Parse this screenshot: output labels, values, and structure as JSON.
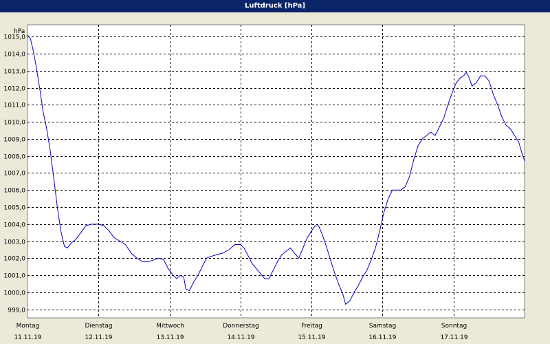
{
  "window": {
    "title": "Luftdruck [hPa]"
  },
  "chart_data": {
    "type": "line",
    "title": "Luftdruck [hPa]",
    "ylabel": "hPa",
    "xlabel": "",
    "ylim": [
      998.5,
      1015.7
    ],
    "xlim": [
      0,
      7
    ],
    "y_ticks": [
      999.0,
      1000.0,
      1001.0,
      1002.0,
      1003.0,
      1004.0,
      1005.0,
      1006.0,
      1007.0,
      1008.0,
      1009.0,
      1010.0,
      1011.0,
      1012.0,
      1013.0,
      1014.0,
      1015.0
    ],
    "y_tick_labels": [
      "999,0",
      "1000,0",
      "1001,0",
      "1002,0",
      "1003,0",
      "1004,0",
      "1005,0",
      "1006,0",
      "1007,0",
      "1008,0",
      "1009,0",
      "1010,0",
      "1011,0",
      "1012,0",
      "1013,0",
      "1014,0",
      "1015,0"
    ],
    "x_ticks": [
      {
        "day": "Montag",
        "date": "11.11.19"
      },
      {
        "day": "Dienstag",
        "date": "12.11.19"
      },
      {
        "day": "Mittwoch",
        "date": "13.11.19"
      },
      {
        "day": "Donnerstag",
        "date": "14.11.19"
      },
      {
        "day": "Freitag",
        "date": "15.11.19"
      },
      {
        "day": "Samstag",
        "date": "16.11.19"
      },
      {
        "day": "Sonntag",
        "date": "17.11.19"
      }
    ],
    "grid": true,
    "series": [
      {
        "name": "",
        "color": "#0000cc",
        "points": [
          [
            0.0,
            1015.1
          ],
          [
            0.04,
            1014.9
          ],
          [
            0.08,
            1014.2
          ],
          [
            0.12,
            1013.3
          ],
          [
            0.17,
            1012.0
          ],
          [
            0.22,
            1010.6
          ],
          [
            0.27,
            1009.6
          ],
          [
            0.32,
            1008.3
          ],
          [
            0.37,
            1006.7
          ],
          [
            0.42,
            1005.0
          ],
          [
            0.47,
            1003.6
          ],
          [
            0.52,
            1002.7
          ],
          [
            0.56,
            1002.6
          ],
          [
            0.62,
            1002.9
          ],
          [
            0.68,
            1003.1
          ],
          [
            0.75,
            1003.5
          ],
          [
            0.82,
            1003.9
          ],
          [
            0.9,
            1004.0
          ],
          [
            1.0,
            1004.0
          ],
          [
            1.08,
            1003.9
          ],
          [
            1.15,
            1003.6
          ],
          [
            1.22,
            1003.2
          ],
          [
            1.3,
            1003.0
          ],
          [
            1.38,
            1002.8
          ],
          [
            1.46,
            1002.3
          ],
          [
            1.54,
            1002.0
          ],
          [
            1.62,
            1001.8
          ],
          [
            1.7,
            1001.8
          ],
          [
            1.78,
            1001.9
          ],
          [
            1.85,
            1002.0
          ],
          [
            1.92,
            1001.9
          ],
          [
            1.98,
            1001.4
          ],
          [
            2.05,
            1001.0
          ],
          [
            2.1,
            1000.8
          ],
          [
            2.15,
            1001.0
          ],
          [
            2.2,
            1000.9
          ],
          [
            2.23,
            1000.2
          ],
          [
            2.28,
            1000.1
          ],
          [
            2.34,
            1000.6
          ],
          [
            2.4,
            1001.0
          ],
          [
            2.46,
            1001.5
          ],
          [
            2.52,
            1002.0
          ],
          [
            2.58,
            1002.1
          ],
          [
            2.66,
            1002.2
          ],
          [
            2.75,
            1002.3
          ],
          [
            2.84,
            1002.5
          ],
          [
            2.92,
            1002.8
          ],
          [
            3.0,
            1002.8
          ],
          [
            3.05,
            1002.6
          ],
          [
            3.1,
            1002.2
          ],
          [
            3.16,
            1001.7
          ],
          [
            3.22,
            1001.4
          ],
          [
            3.28,
            1001.1
          ],
          [
            3.34,
            1000.8
          ],
          [
            3.4,
            1000.8
          ],
          [
            3.46,
            1001.3
          ],
          [
            3.52,
            1001.8
          ],
          [
            3.58,
            1002.2
          ],
          [
            3.64,
            1002.4
          ],
          [
            3.7,
            1002.6
          ],
          [
            3.76,
            1002.3
          ],
          [
            3.82,
            1002.0
          ],
          [
            3.88,
            1002.6
          ],
          [
            3.94,
            1003.2
          ],
          [
            4.0,
            1003.6
          ],
          [
            4.05,
            1003.9
          ],
          [
            4.1,
            1003.9
          ],
          [
            4.15,
            1003.4
          ],
          [
            4.2,
            1002.8
          ],
          [
            4.26,
            1002.0
          ],
          [
            4.32,
            1001.2
          ],
          [
            4.38,
            1000.5
          ],
          [
            4.44,
            999.9
          ],
          [
            4.48,
            999.3
          ],
          [
            4.54,
            999.5
          ],
          [
            4.6,
            1000.0
          ],
          [
            4.66,
            1000.4
          ],
          [
            4.72,
            1000.9
          ],
          [
            4.78,
            1001.3
          ],
          [
            4.84,
            1001.9
          ],
          [
            4.9,
            1002.6
          ],
          [
            4.96,
            1003.6
          ],
          [
            5.02,
            1004.7
          ],
          [
            5.08,
            1005.5
          ],
          [
            5.14,
            1006.0
          ],
          [
            5.2,
            1006.0
          ],
          [
            5.26,
            1006.0
          ],
          [
            5.32,
            1006.2
          ],
          [
            5.38,
            1006.8
          ],
          [
            5.44,
            1007.8
          ],
          [
            5.5,
            1008.6
          ],
          [
            5.56,
            1009.0
          ],
          [
            5.62,
            1009.2
          ],
          [
            5.68,
            1009.4
          ],
          [
            5.74,
            1009.2
          ],
          [
            5.8,
            1009.7
          ],
          [
            5.86,
            1010.2
          ],
          [
            5.92,
            1011.0
          ],
          [
            5.98,
            1011.7
          ],
          [
            6.04,
            1012.3
          ],
          [
            6.1,
            1012.6
          ],
          [
            6.14,
            1012.7
          ],
          [
            6.18,
            1012.9
          ],
          [
            6.22,
            1012.6
          ],
          [
            6.26,
            1012.1
          ],
          [
            6.32,
            1012.3
          ],
          [
            6.38,
            1012.7
          ],
          [
            6.44,
            1012.7
          ],
          [
            6.5,
            1012.4
          ],
          [
            6.56,
            1011.6
          ],
          [
            6.62,
            1011.0
          ],
          [
            6.68,
            1010.3
          ],
          [
            6.74,
            1009.8
          ],
          [
            6.8,
            1009.6
          ],
          [
            6.86,
            1009.2
          ],
          [
            6.92,
            1008.8
          ],
          [
            6.96,
            1008.2
          ],
          [
            7.0,
            1007.7
          ]
        ]
      }
    ]
  }
}
